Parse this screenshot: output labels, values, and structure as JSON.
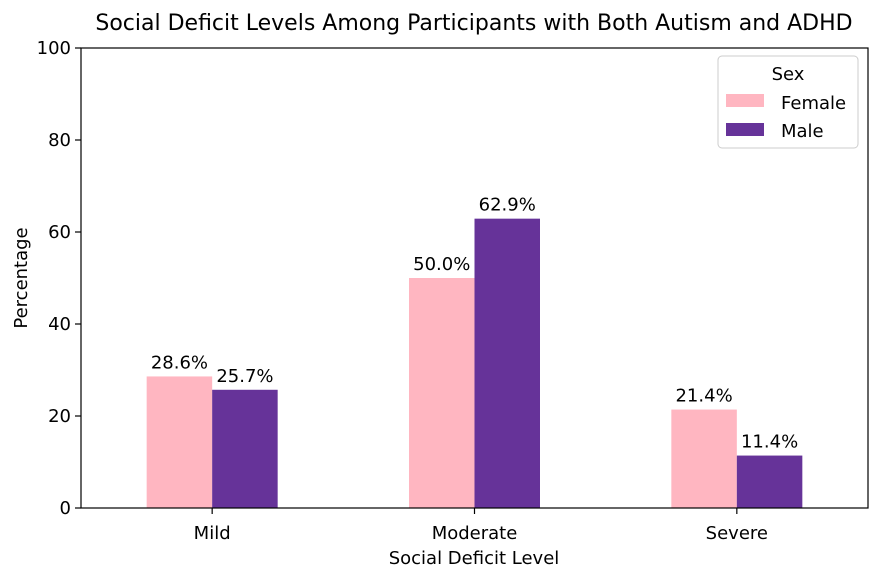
{
  "chart_data": {
    "type": "bar",
    "title": "Social Deficit Levels Among Participants with Both Autism and ADHD",
    "xlabel": "Social Deficit Level",
    "ylabel": "Percentage",
    "categories": [
      "Mild",
      "Moderate",
      "Severe"
    ],
    "series": [
      {
        "name": "Female",
        "color": "#ffb6c1",
        "values": [
          28.6,
          50.0,
          21.4
        ],
        "labels": [
          "28.6%",
          "50.0%",
          "21.4%"
        ]
      },
      {
        "name": "Male",
        "color": "#663399",
        "values": [
          25.7,
          62.9,
          11.4
        ],
        "labels": [
          "25.7%",
          "62.9%",
          "11.4%"
        ]
      }
    ],
    "ylim": [
      0,
      100
    ],
    "yticks": [
      0,
      20,
      40,
      60,
      80,
      100
    ],
    "grid": false,
    "legend": {
      "title": "Sex",
      "placement": "top-right"
    }
  }
}
